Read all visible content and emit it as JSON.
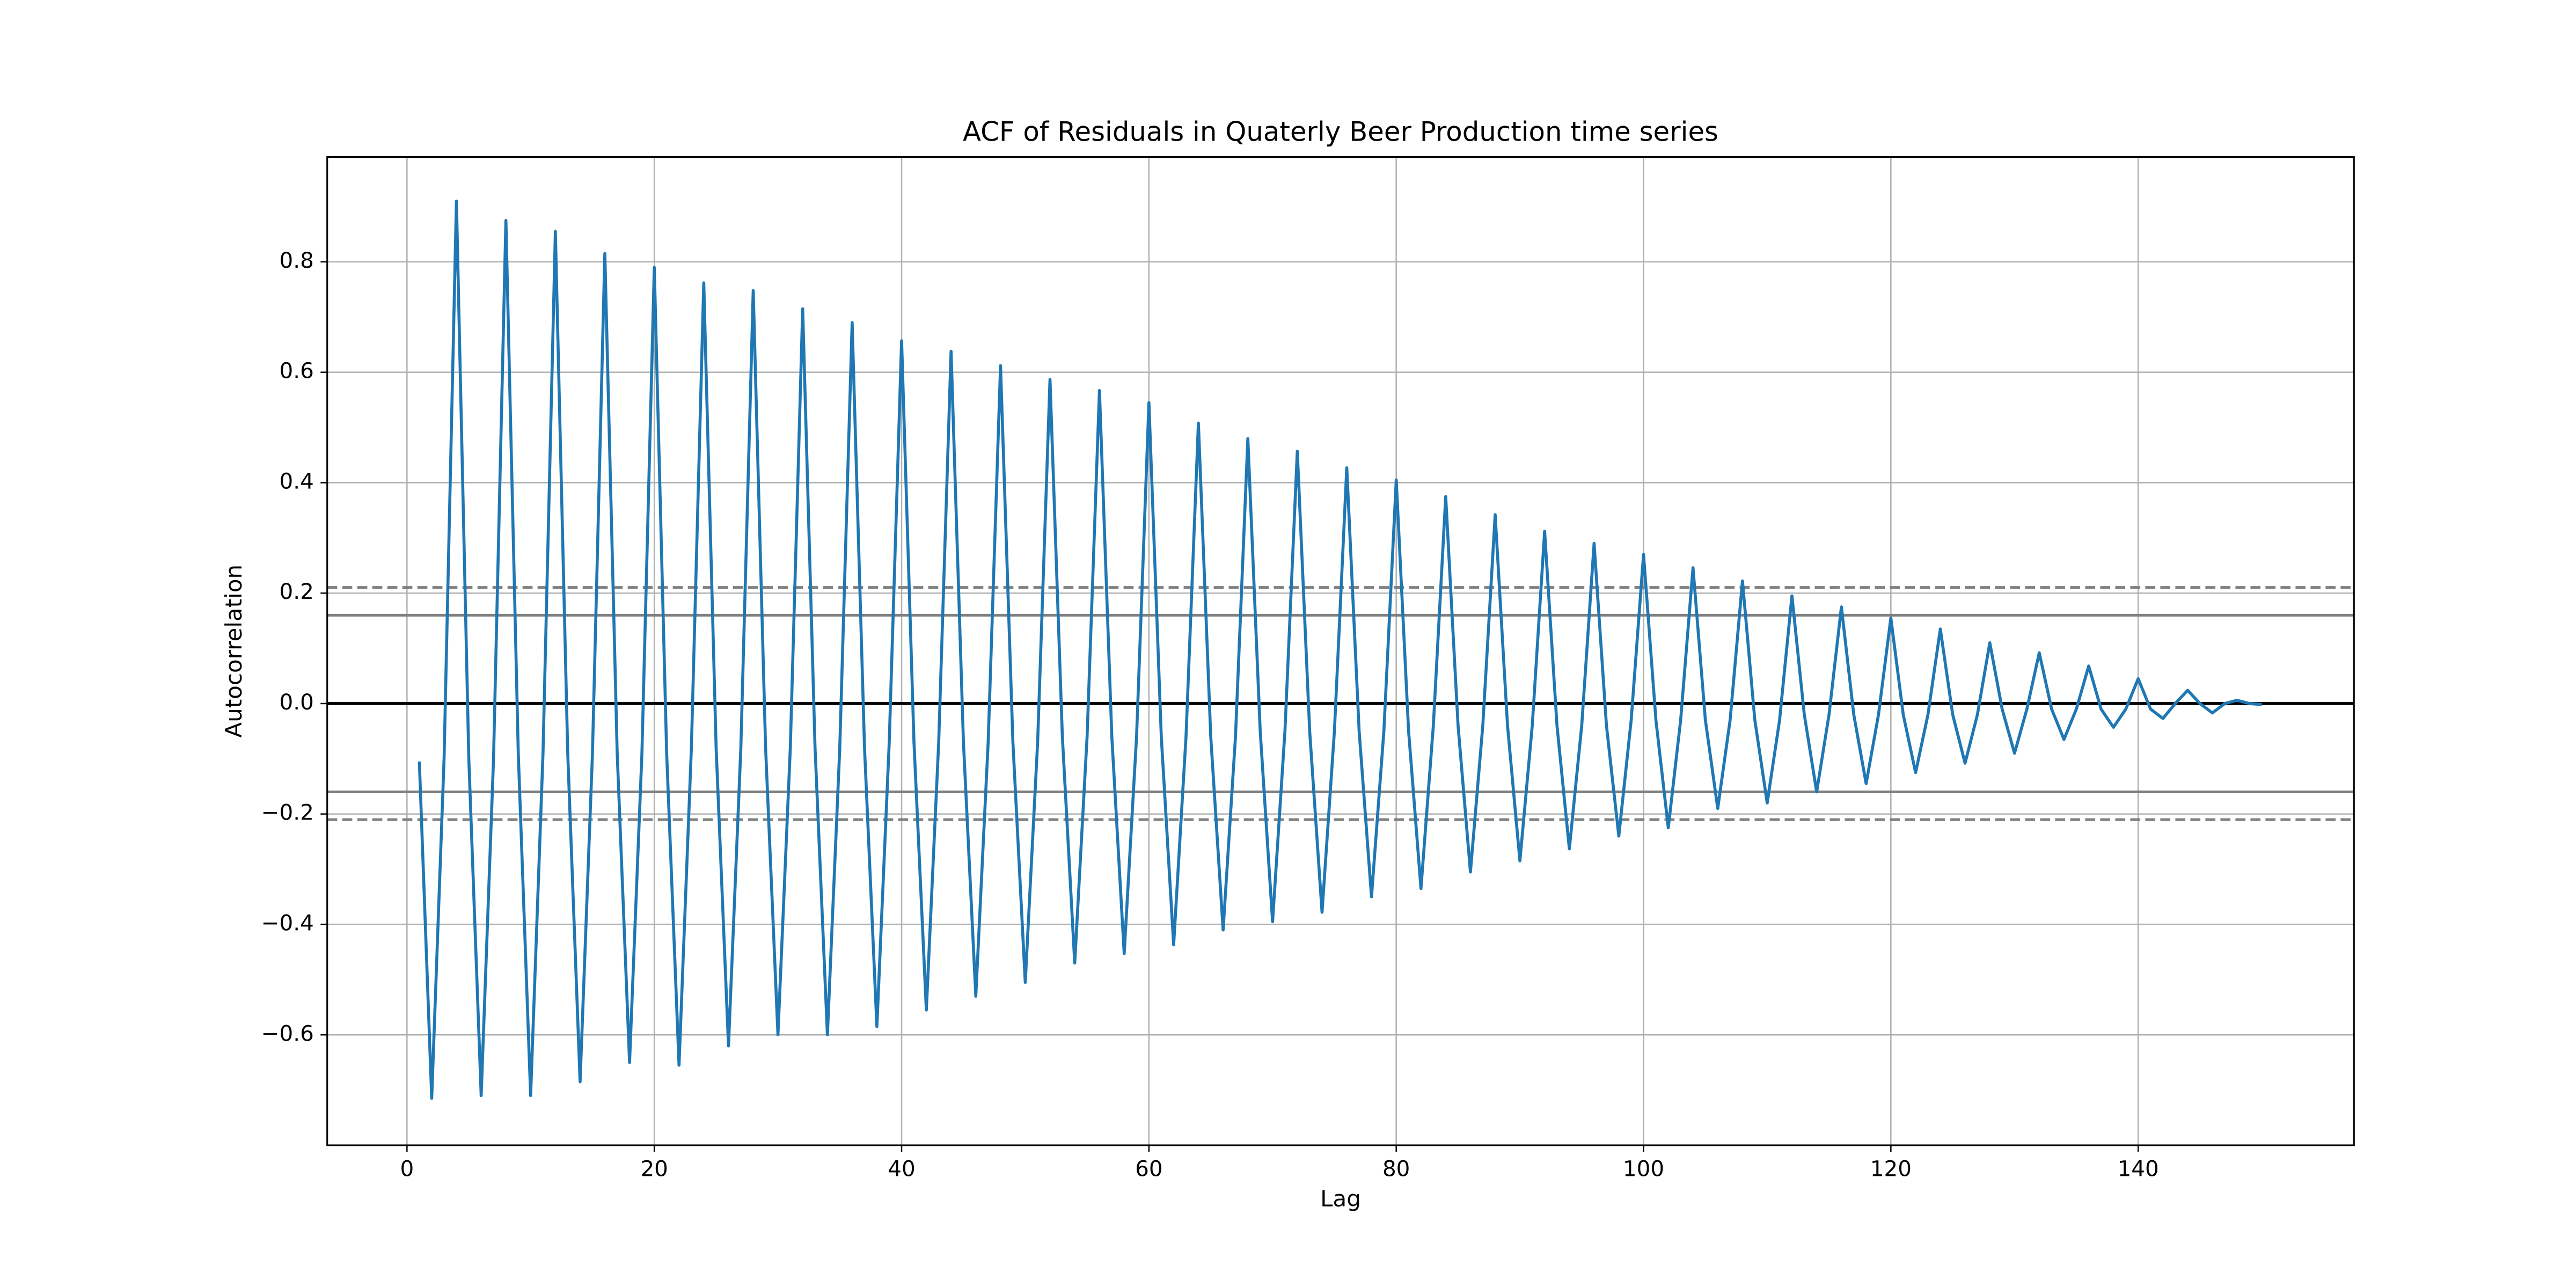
{
  "chart_data": {
    "type": "line",
    "title": "ACF of Residuals in Quaterly Beer Production time series",
    "x_label": "Lag",
    "y_label": "Autocorrelation",
    "color": "#1f77b4",
    "grid": true,
    "xlim": [
      -6.45,
      157.45
    ],
    "ylim": [
      -0.8,
      0.99
    ],
    "xticks": [
      0,
      20,
      40,
      60,
      80,
      100,
      120,
      140
    ],
    "yticks": [
      {
        "value": -0.6,
        "label": "−0.6"
      },
      {
        "value": -0.4,
        "label": "−0.4"
      },
      {
        "value": -0.2,
        "label": "−0.2"
      },
      {
        "value": 0.0,
        "label": "0.0"
      },
      {
        "value": 0.2,
        "label": "0.2"
      },
      {
        "value": 0.4,
        "label": "0.4"
      },
      {
        "value": 0.6,
        "label": "0.6"
      },
      {
        "value": 0.8,
        "label": "0.8"
      }
    ],
    "hlines": [
      {
        "value": 0.2103,
        "style": "dashed",
        "color": "#808080"
      },
      {
        "value": 0.16,
        "style": "solid",
        "color": "#808080"
      },
      {
        "value": 0,
        "style": "solid",
        "color": "#000000"
      },
      {
        "value": -0.16,
        "style": "solid",
        "color": "#808080"
      },
      {
        "value": -0.2103,
        "style": "dashed",
        "color": "#808080"
      }
    ],
    "x": [
      1,
      2,
      3,
      4,
      5,
      6,
      7,
      8,
      9,
      10,
      11,
      12,
      13,
      14,
      15,
      16,
      17,
      18,
      19,
      20,
      21,
      22,
      23,
      24,
      25,
      26,
      27,
      28,
      29,
      30,
      31,
      32,
      33,
      34,
      35,
      36,
      37,
      38,
      39,
      40,
      41,
      42,
      43,
      44,
      45,
      46,
      47,
      48,
      49,
      50,
      51,
      52,
      53,
      54,
      55,
      56,
      57,
      58,
      59,
      60,
      61,
      62,
      63,
      64,
      65,
      66,
      67,
      68,
      69,
      70,
      71,
      72,
      73,
      74,
      75,
      76,
      77,
      78,
      79,
      80,
      81,
      82,
      83,
      84,
      85,
      86,
      87,
      88,
      89,
      90,
      91,
      92,
      93,
      94,
      95,
      96,
      97,
      98,
      99,
      100,
      101,
      102,
      103,
      104,
      105,
      106,
      107,
      108,
      109,
      110,
      111,
      112,
      113,
      114,
      115,
      116,
      117,
      118,
      119,
      120,
      121,
      122,
      123,
      124,
      125,
      126,
      127,
      128,
      129,
      130,
      131,
      132,
      133,
      134,
      135,
      136,
      137,
      138,
      139,
      140,
      141,
      142,
      143,
      144,
      145,
      146,
      147,
      148,
      149,
      150
    ],
    "values": [
      -0.105,
      -0.715,
      -0.1,
      0.91,
      -0.1,
      -0.71,
      -0.1,
      0.875,
      -0.09,
      -0.71,
      -0.09,
      0.855,
      -0.09,
      -0.685,
      -0.09,
      0.815,
      -0.09,
      -0.65,
      -0.09,
      0.79,
      -0.09,
      -0.655,
      -0.08,
      0.762,
      -0.08,
      -0.62,
      -0.08,
      0.748,
      -0.08,
      -0.6,
      -0.08,
      0.715,
      -0.08,
      -0.6,
      -0.08,
      0.69,
      -0.08,
      -0.585,
      -0.07,
      0.657,
      -0.07,
      -0.555,
      -0.07,
      0.638,
      -0.07,
      -0.53,
      -0.07,
      0.612,
      -0.07,
      -0.505,
      -0.07,
      0.587,
      -0.06,
      -0.47,
      -0.06,
      0.567,
      -0.06,
      -0.453,
      -0.06,
      0.545,
      -0.06,
      -0.437,
      -0.06,
      0.508,
      -0.06,
      -0.41,
      -0.06,
      0.48,
      -0.05,
      -0.395,
      -0.05,
      0.457,
      -0.05,
      -0.378,
      -0.05,
      0.427,
      -0.05,
      -0.35,
      -0.05,
      0.405,
      -0.05,
      -0.335,
      -0.04,
      0.375,
      -0.04,
      -0.305,
      -0.04,
      0.342,
      -0.04,
      -0.285,
      -0.04,
      0.312,
      -0.04,
      -0.263,
      -0.04,
      0.29,
      -0.04,
      -0.24,
      -0.03,
      0.27,
      -0.03,
      -0.225,
      -0.03,
      0.246,
      -0.03,
      -0.19,
      -0.03,
      0.222,
      -0.03,
      -0.18,
      -0.03,
      0.195,
      -0.02,
      -0.16,
      -0.02,
      0.175,
      -0.02,
      -0.145,
      -0.02,
      0.155,
      -0.02,
      -0.125,
      -0.02,
      0.135,
      -0.02,
      -0.108,
      -0.02,
      0.11,
      -0.01,
      -0.09,
      -0.01,
      0.092,
      -0.01,
      -0.065,
      -0.01,
      0.068,
      -0.01,
      -0.043,
      -0.01,
      0.045,
      -0.01,
      -0.027,
      0,
      0.024,
      0,
      -0.017,
      0,
      0.006,
      0,
      -0.002
    ]
  }
}
